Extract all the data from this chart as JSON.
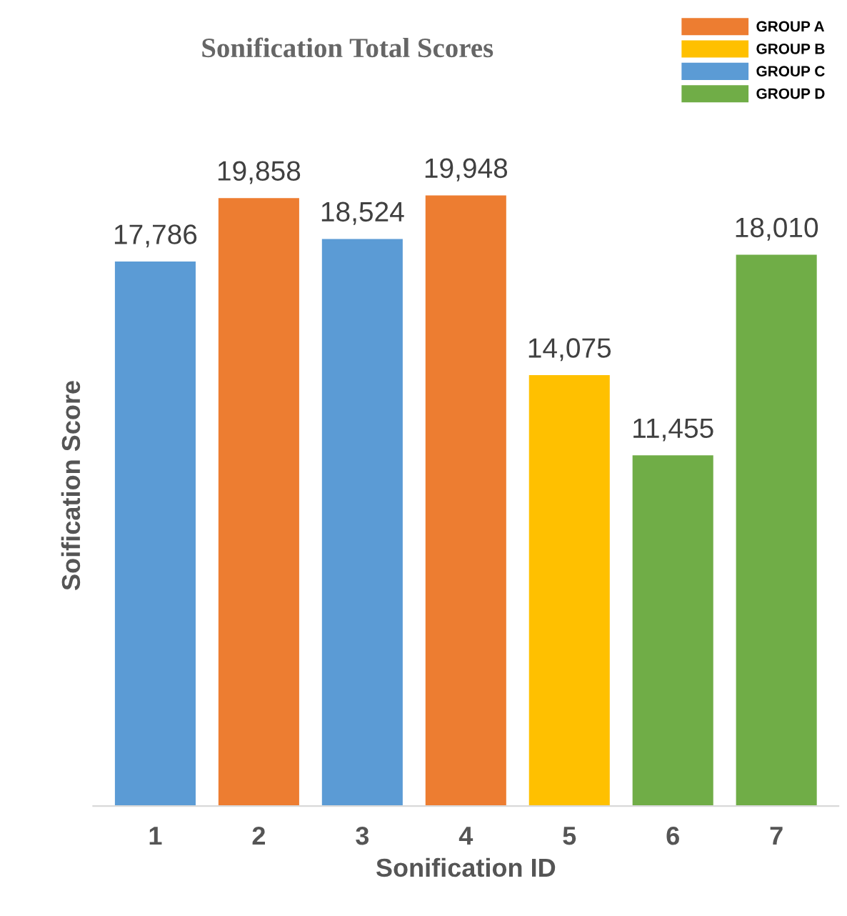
{
  "chart_data": {
    "type": "bar",
    "title": "Sonification Total Scores",
    "xlabel": "Sonification ID",
    "ylabel": "Soification Score",
    "categories": [
      "1",
      "2",
      "3",
      "4",
      "5",
      "6",
      "7"
    ],
    "series": [
      {
        "name": "GROUP A",
        "color": "#ed7d31",
        "values": [
          null,
          19858,
          null,
          19948,
          null,
          null,
          null
        ],
        "value_labels": [
          null,
          "19,858",
          null,
          "19,948",
          null,
          null,
          null
        ]
      },
      {
        "name": "GROUP B",
        "color": "#ffc000",
        "values": [
          null,
          null,
          null,
          null,
          14075,
          null,
          null
        ],
        "value_labels": [
          null,
          null,
          null,
          null,
          "14,075",
          null,
          null
        ]
      },
      {
        "name": "GROUP C",
        "color": "#5b9bd5",
        "values": [
          17786,
          null,
          18524,
          null,
          null,
          null,
          null
        ],
        "value_labels": [
          "17,786",
          null,
          "18,524",
          null,
          null,
          null,
          null
        ]
      },
      {
        "name": "GROUP D",
        "color": "#70ad47",
        "values": [
          null,
          null,
          null,
          null,
          null,
          11455,
          18010
        ],
        "value_labels": [
          null,
          null,
          null,
          null,
          null,
          "11,455",
          "18,010"
        ]
      }
    ],
    "legend": "top right",
    "grid": false,
    "tick_labels": "x"
  }
}
